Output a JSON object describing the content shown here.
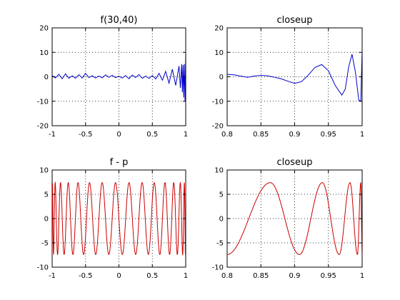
{
  "figure": {
    "background": "#ffffff"
  },
  "chart_data": [
    {
      "type": "line",
      "title": "f(30,40)",
      "xlabel": "",
      "ylabel": "",
      "xlim": [
        -1,
        1
      ],
      "ylim": [
        -20,
        20
      ],
      "xticks": [
        -1,
        -0.5,
        0,
        0.5,
        1
      ],
      "xtick_labels": [
        "-1",
        "-0.5",
        "0",
        "0.5",
        "1"
      ],
      "yticks": [
        -20,
        -10,
        0,
        10,
        20
      ],
      "ytick_labels": [
        "-20",
        "-10",
        "0",
        "10",
        "20"
      ],
      "grid": true,
      "series": [
        {
          "color": "#0000cc",
          "x": [
            -1,
            -0.95,
            -0.9,
            -0.85,
            -0.8,
            -0.75,
            -0.7,
            -0.65,
            -0.6,
            -0.55,
            -0.5,
            -0.45,
            -0.4,
            -0.35,
            -0.3,
            -0.25,
            -0.2,
            -0.15,
            -0.1,
            -0.05,
            0,
            0.05,
            0.1,
            0.15,
            0.2,
            0.25,
            0.3,
            0.35,
            0.4,
            0.45,
            0.5,
            0.55,
            0.6,
            0.65,
            0.7,
            0.75,
            0.8,
            0.85,
            0.9,
            0.92,
            0.94,
            0.95,
            0.96,
            0.97,
            0.98,
            0.99,
            1
          ],
          "y": [
            0.5,
            -0.5,
            1,
            -0.8,
            1.2,
            -0.6,
            0.4,
            -0.6,
            0.9,
            -0.5,
            1.4,
            -0.3,
            0.4,
            -0.5,
            0.3,
            -0.4,
            0.8,
            -0.2,
            0.6,
            -0.3,
            0.2,
            -0.5,
            0.5,
            -0.8,
            0.7,
            -0.3,
            0.9,
            -0.6,
            0.3,
            -0.7,
            0.5,
            -0.9,
            1.4,
            -1.4,
            2.2,
            -2.6,
            3.1,
            -3.5,
            4.4,
            -4.5,
            5.2,
            -6.3,
            4.8,
            -8.5,
            5.2,
            -10,
            11
          ]
        }
      ]
    },
    {
      "type": "line",
      "title": "closeup",
      "xlabel": "",
      "ylabel": "",
      "xlim": [
        0.8,
        1
      ],
      "ylim": [
        -20,
        20
      ],
      "xticks": [
        0.8,
        0.85,
        0.9,
        0.95,
        1
      ],
      "xtick_labels": [
        "0.8",
        "0.85",
        "0.9",
        "0.95",
        "1"
      ],
      "yticks": [
        -20,
        -10,
        0,
        10,
        20
      ],
      "ytick_labels": [
        "-20",
        "-10",
        "0",
        "10",
        "20"
      ],
      "grid": true,
      "series": [
        {
          "color": "#0000cc",
          "x": [
            0.8,
            0.81,
            0.82,
            0.83,
            0.84,
            0.85,
            0.86,
            0.87,
            0.88,
            0.89,
            0.9,
            0.91,
            0.92,
            0.93,
            0.94,
            0.95,
            0.96,
            0.97,
            0.975,
            0.98,
            0.985,
            0.99,
            0.995,
            0.998,
            1
          ],
          "y": [
            1,
            0.8,
            0.3,
            -0.2,
            0.3,
            0.6,
            0.4,
            -0.2,
            -0.8,
            -1.8,
            -2.7,
            -2,
            0.6,
            3.8,
            5,
            2.5,
            -3.5,
            -7.5,
            -5,
            4,
            9.2,
            2,
            -9.5,
            -10,
            11
          ]
        }
      ]
    },
    {
      "type": "line",
      "title": "f - p",
      "xlabel": "",
      "ylabel": "",
      "xlim": [
        -1,
        1
      ],
      "ylim": [
        -10,
        10
      ],
      "xticks": [
        -1,
        -0.5,
        0,
        0.5,
        1
      ],
      "xtick_labels": [
        "-1",
        "-0.5",
        "0",
        "0.5",
        "1"
      ],
      "yticks": [
        -10,
        -5,
        0,
        5,
        10
      ],
      "ytick_labels": [
        "-10",
        "-5",
        "0",
        "5",
        "10"
      ],
      "grid": true,
      "series": [
        {
          "color": "#cc0000",
          "equioscillation": {
            "amplitude": 7.4,
            "half_periods": 31
          },
          "x": [
            -1,
            1
          ],
          "y": [
            -7.4,
            7.4
          ]
        }
      ]
    },
    {
      "type": "line",
      "title": "closeup",
      "xlabel": "",
      "ylabel": "",
      "xlim": [
        0.8,
        1
      ],
      "ylim": [
        -10,
        10
      ],
      "xticks": [
        0.8,
        0.85,
        0.9,
        0.95,
        1
      ],
      "xtick_labels": [
        "0.8",
        "0.85",
        "0.9",
        "0.95",
        "1"
      ],
      "yticks": [
        -10,
        -5,
        0,
        5,
        10
      ],
      "ytick_labels": [
        "-10",
        "-5",
        "0",
        "5",
        "10"
      ],
      "grid": true,
      "series": [
        {
          "color": "#cc0000",
          "extrema": [
            [
              0.8,
              -7.4
            ],
            [
              0.864,
              7.4
            ],
            [
              0.907,
              -7.4
            ],
            [
              0.941,
              7.4
            ],
            [
              0.966,
              -7.4
            ],
            [
              0.982,
              7.4
            ],
            [
              0.993,
              -7.4
            ],
            [
              0.998,
              7.4
            ],
            [
              1,
              -7.4
            ]
          ]
        }
      ]
    }
  ]
}
